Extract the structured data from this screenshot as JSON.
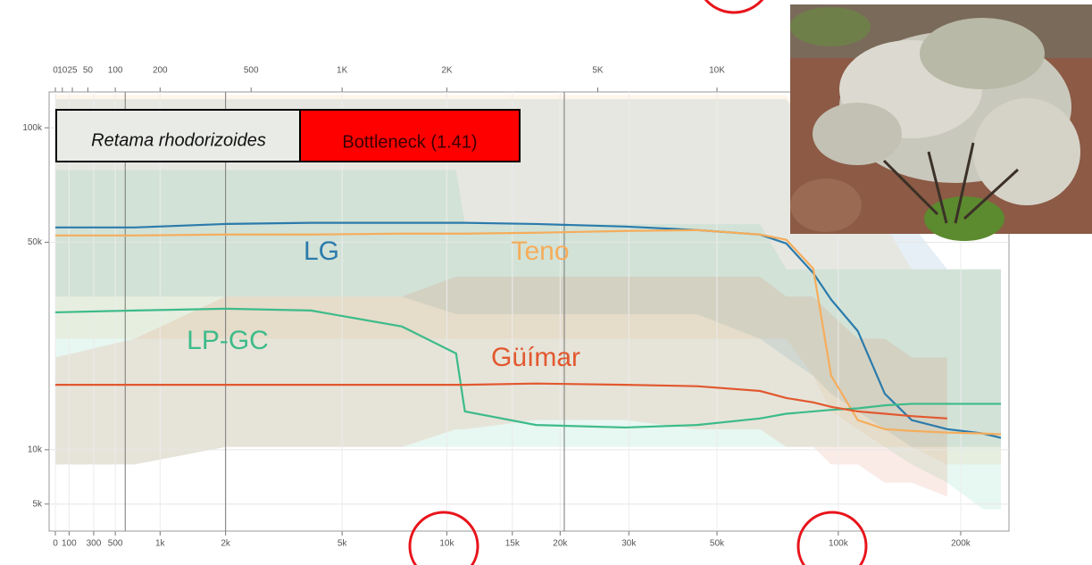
{
  "chart_data": {
    "type": "line",
    "species": "Retama rhodorizoides",
    "annotation": "Bottleneck (1.41)",
    "x": [
      0,
      700,
      2000,
      4000,
      7500,
      10600,
      11200,
      17300,
      29400,
      44600,
      64000,
      74400,
      86700,
      96000,
      111700,
      130200,
      151600,
      185400,
      226800,
      251000
    ],
    "series": [
      {
        "name": "LG",
        "color": "#2b7bab",
        "values": [
          54900,
          54900,
          56100,
          56500,
          56500,
          56500,
          56500,
          56100,
          55200,
          54000,
          52500,
          49600,
          41000,
          34300,
          27500,
          16900,
          13400,
          12300,
          11800,
          11300
        ],
        "upper": [
          118000,
          118000,
          118000,
          118000,
          118000,
          118000,
          118000,
          118000,
          118000,
          118000,
          118000,
          118000,
          96000,
          78000,
          70000,
          56000,
          56000,
          42000,
          42000,
          42000
        ],
        "lower": [
          35000,
          35000,
          35000,
          35000,
          35000,
          31000,
          31000,
          31000,
          31000,
          31000,
          26000,
          22600,
          19600,
          16900,
          14500,
          12300,
          10300,
          10300,
          10300,
          10300
        ]
      },
      {
        "name": "Teno",
        "color": "#f5ad5c",
        "values": [
          52200,
          52200,
          52500,
          52500,
          52800,
          52800,
          52800,
          53100,
          53700,
          54000,
          52500,
          50800,
          42200,
          19600,
          13400,
          12300,
          12100,
          11900,
          11800,
          11700
        ],
        "upper": [
          121000,
          121000,
          121000,
          121000,
          121000,
          121000,
          121000,
          121000,
          121000,
          121000,
          121000,
          121000,
          96000,
          78000,
          70000,
          56000,
          42000,
          42000,
          42000,
          42000
        ],
        "lower": [
          26000,
          26000,
          26000,
          26000,
          26000,
          26000,
          26000,
          26000,
          26000,
          26000,
          26000,
          26000,
          19600,
          14500,
          12300,
          10300,
          10300,
          8500,
          8500,
          8500
        ]
      },
      {
        "name": "LP-GC",
        "color": "#3dbb8a",
        "values": [
          31400,
          31800,
          32200,
          31800,
          28400,
          23300,
          14500,
          12800,
          12500,
          12800,
          13600,
          14200,
          14500,
          14700,
          14900,
          15300,
          15500,
          15500,
          15500,
          15500
        ],
        "upper": [
          78000,
          78000,
          78000,
          78000,
          78000,
          78000,
          56000,
          56000,
          56000,
          56000,
          56000,
          42000,
          42000,
          42000,
          42000,
          42000,
          42000,
          42000,
          42000,
          42000
        ],
        "lower": [
          8500,
          8500,
          10300,
          10300,
          10300,
          10300,
          10300,
          10300,
          10300,
          10300,
          10300,
          10300,
          10300,
          10300,
          10300,
          10300,
          8500,
          6800,
          4600,
          4600
        ]
      },
      {
        "name": "Güímar",
        "color": "#e2582f",
        "values": [
          18200,
          18200,
          18200,
          18200,
          18200,
          18200,
          18200,
          18400,
          18200,
          18000,
          17300,
          16300,
          15700,
          15100,
          14500,
          14200,
          13900,
          13600,
          null,
          null
        ],
        "upper": [
          22600,
          26000,
          35000,
          35000,
          35000,
          40000,
          40000,
          40000,
          40000,
          40000,
          40000,
          35000,
          35000,
          31000,
          26000,
          26000,
          22600,
          22600,
          null,
          null
        ],
        "lower": [
          8500,
          8500,
          10300,
          10300,
          10300,
          12300,
          12300,
          13400,
          13400,
          12300,
          12300,
          10300,
          10300,
          8500,
          8500,
          6800,
          6800,
          5600,
          null,
          null
        ]
      }
    ],
    "xlim": [
      0,
      260000
    ],
    "xticks": [
      0,
      100,
      300,
      500,
      {
        "value": 1000,
        "label": "1k"
      },
      {
        "value": 2000,
        "label": "2k"
      },
      {
        "value": 5000,
        "label": "5k"
      },
      {
        "value": 10000,
        "label": "10k"
      },
      {
        "value": 15000,
        "label": "15k"
      },
      {
        "value": 20000,
        "label": "20k"
      },
      {
        "value": 30000,
        "label": "30k"
      },
      {
        "value": 50000,
        "label": "50k"
      },
      {
        "value": 100000,
        "label": "100k"
      },
      {
        "value": 200000,
        "label": "200k"
      }
    ],
    "x2lim": [
      0,
      52000
    ],
    "x2ticks": [
      0,
      10,
      25,
      50,
      100,
      200,
      500,
      {
        "value": 1000,
        "label": "1K"
      },
      {
        "value": 2000,
        "label": "2K"
      },
      {
        "value": 5000,
        "label": "5K"
      },
      {
        "value": 10000,
        "label": "10K"
      }
    ],
    "ylim": [
      3000,
      123000
    ],
    "yticks": [
      {
        "value": 5000,
        "label": "5k"
      },
      {
        "value": 10000,
        "label": "10k"
      },
      {
        "value": 50000,
        "label": "50k"
      },
      {
        "value": 100000,
        "label": "100k"
      }
    ],
    "vlines": [
      600,
      2000,
      20500
    ],
    "grid": true
  }
}
